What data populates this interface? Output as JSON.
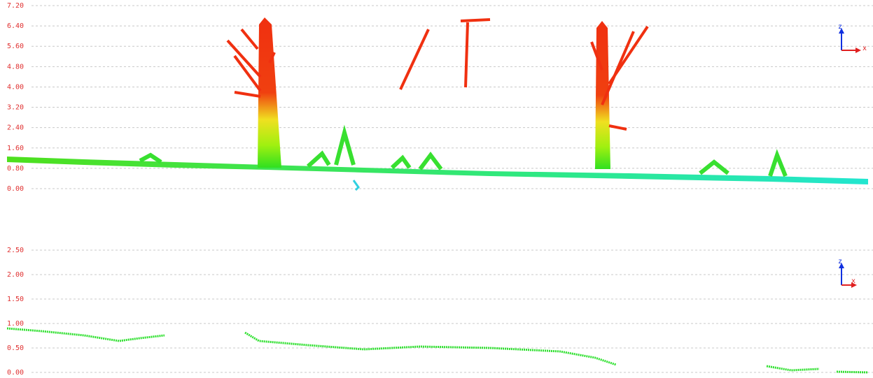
{
  "panels": [
    {
      "yticks": [
        {
          "value": 0,
          "label": "0.00"
        },
        {
          "value": 0.8,
          "label": "0.80"
        },
        {
          "value": 1.6,
          "label": "1.60"
        },
        {
          "value": 2.4,
          "label": "2.40"
        },
        {
          "value": 3.2,
          "label": "3.20"
        },
        {
          "value": 4,
          "label": "4.00"
        },
        {
          "value": 4.8,
          "label": "4.80"
        },
        {
          "value": 5.6,
          "label": "5.60"
        },
        {
          "value": 6.4,
          "label": "6.40"
        },
        {
          "value": 7.2,
          "label": "7.20"
        }
      ],
      "axis_labels": [
        "z",
        "x"
      ]
    },
    {
      "yticks": [
        {
          "value": 0,
          "label": "0.00"
        },
        {
          "value": 0.5,
          "label": "0.50"
        },
        {
          "value": 1,
          "label": "1.00"
        },
        {
          "value": 1.5,
          "label": "1.50"
        },
        {
          "value": 2,
          "label": "2.00"
        },
        {
          "value": 2.5,
          "label": "2.50"
        }
      ],
      "axis_labels": [
        "z",
        "x"
      ]
    }
  ]
}
